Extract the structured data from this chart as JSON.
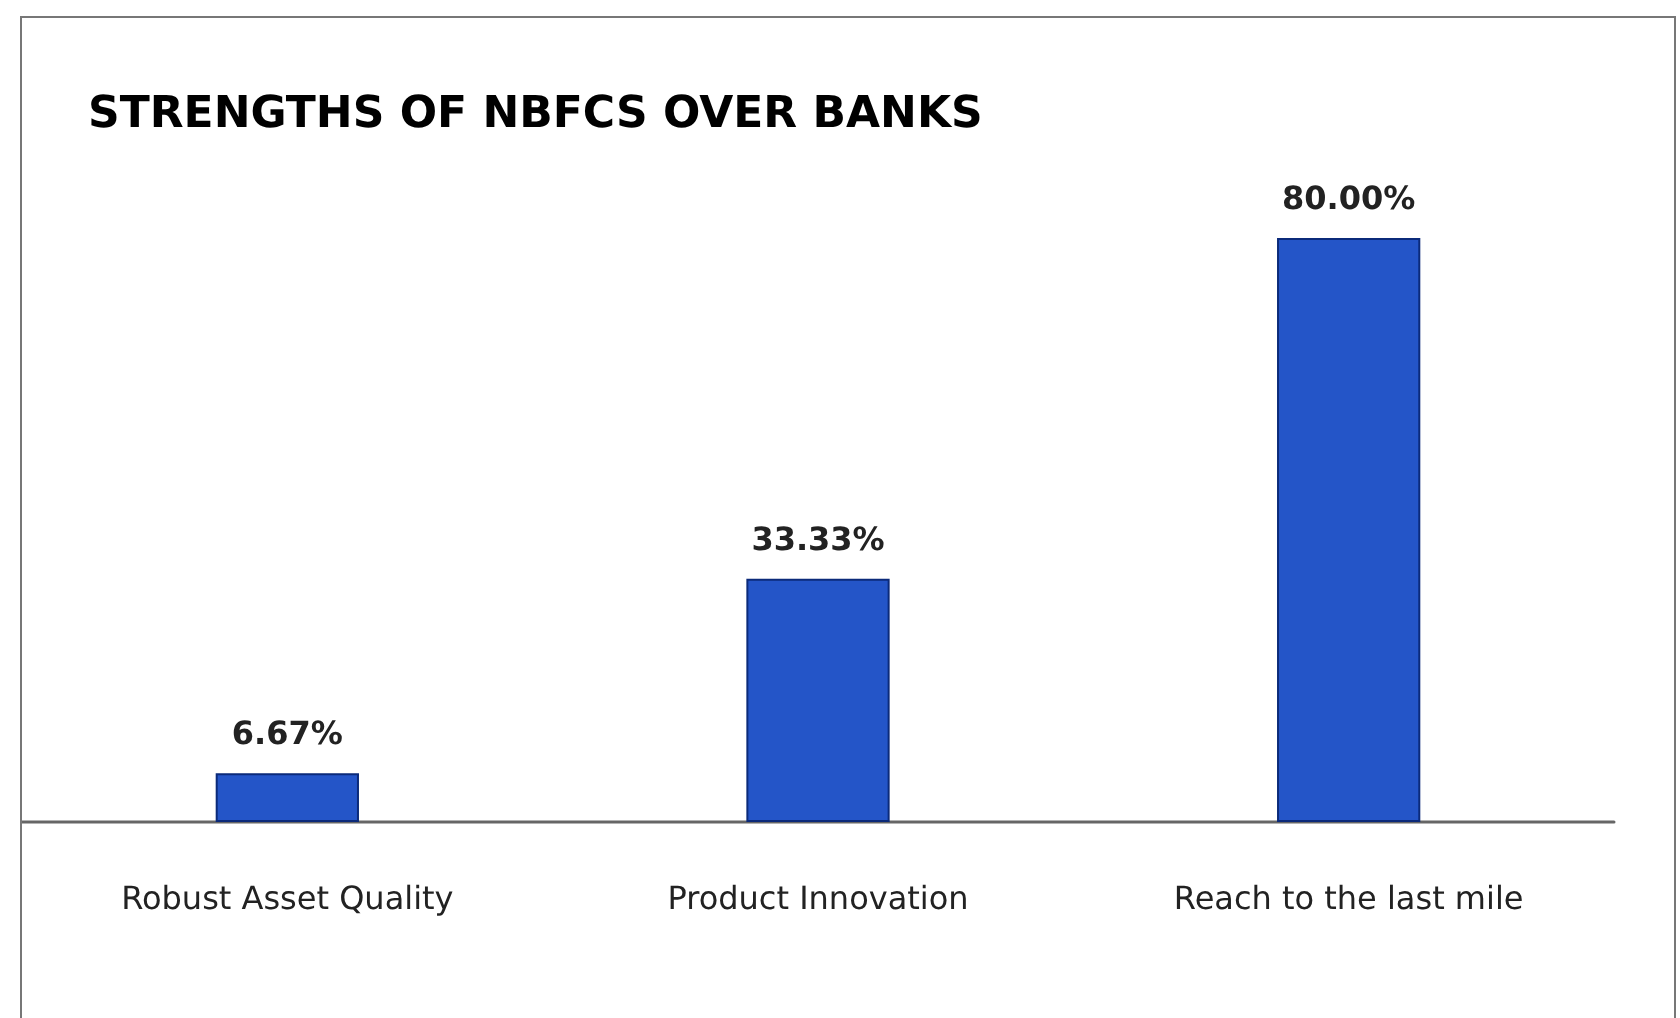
{
  "chart_data": {
    "type": "bar",
    "title": "STRENGTHS OF NBFCS OVER BANKS",
    "categories": [
      "Robust Asset Quality",
      "Product Innovation",
      "Reach to the last mile"
    ],
    "values": [
      6.67,
      33.33,
      80
    ],
    "value_labels": [
      "6.67%",
      "33.33%",
      "80.00%"
    ],
    "color": "#2455c8"
  }
}
